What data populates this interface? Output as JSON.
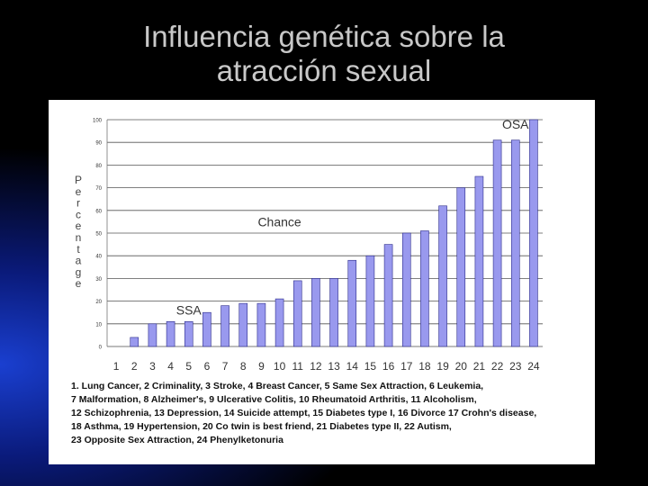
{
  "slide": {
    "title_line1": "Influencia genética sobre la",
    "title_line2": "atracción sexual"
  },
  "colors": {
    "background": "#000000",
    "title": "#c8c8c8",
    "bar_fill": "#9999ee",
    "bar_stroke": "#2a2a8a",
    "grid": "#555555"
  },
  "chart_data": {
    "type": "bar",
    "ylabel": "Percentage",
    "ylim": [
      0,
      100
    ],
    "yticks": [
      0,
      10,
      20,
      30,
      40,
      50,
      60,
      70,
      80,
      90,
      100
    ],
    "grid": true,
    "categories": [
      "1",
      "2",
      "3",
      "4",
      "5",
      "6",
      "7",
      "8",
      "9",
      "10",
      "11",
      "12",
      "13",
      "14",
      "15",
      "16",
      "17",
      "18",
      "19",
      "20",
      "21",
      "22",
      "23",
      "24"
    ],
    "values": [
      0,
      4,
      10,
      11,
      11,
      15,
      18,
      19,
      19,
      21,
      29,
      30,
      30,
      38,
      40,
      45,
      50,
      51,
      62,
      70,
      75,
      91,
      91,
      100
    ],
    "annotations": [
      {
        "text": "OSA",
        "x": "23",
        "y": 96
      },
      {
        "text": "Chance",
        "x": "10",
        "y": 53
      },
      {
        "text": "SSA",
        "x": "5",
        "y": 14
      }
    ]
  },
  "legend_lines": [
    "1. Lung Cancer, 2 Criminality, 3 Stroke, 4 Breast Cancer, 5 Same Sex Attraction, 6 Leukemia,",
    "7 Malformation, 8 Alzheimer's, 9 Ulcerative Colitis, 10 Rheumatoid Arthritis, 11 Alcoholism,",
    "12 Schizophrenia, 13 Depression, 14 Suicide attempt, 15 Diabetes type I, 16 Divorce 17 Crohn's disease,",
    "18 Asthma, 19 Hypertension, 20 Co twin is best friend, 21 Diabetes type II, 22 Autism,",
    "23 Opposite Sex Attraction, 24 Phenylketonuria"
  ]
}
